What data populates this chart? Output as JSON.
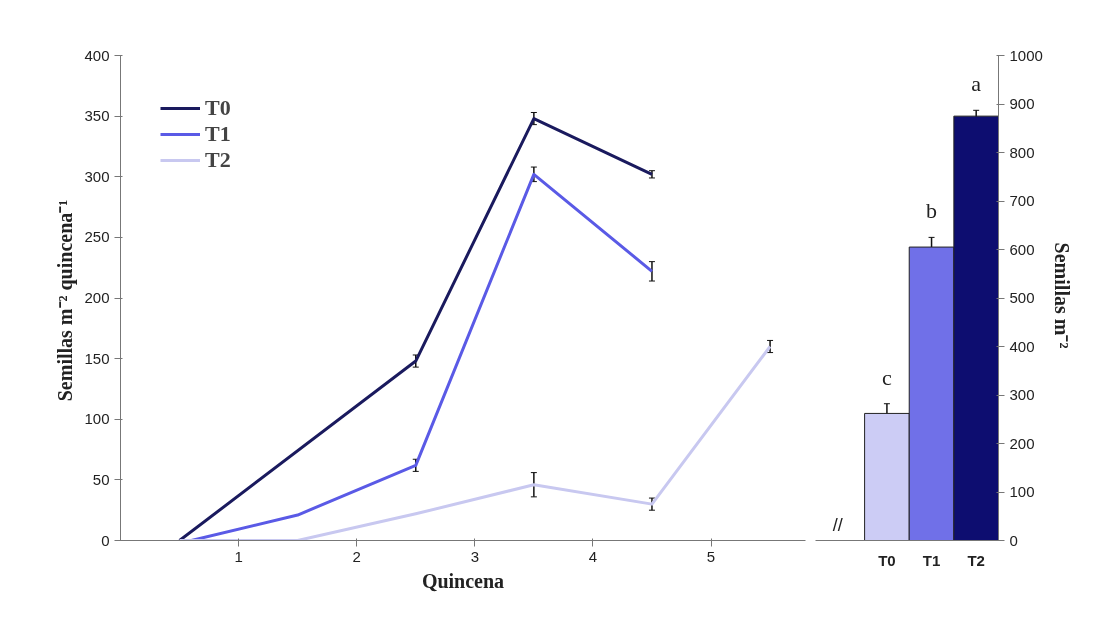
{
  "chart_data": [
    {
      "type": "line",
      "xlabel": "Quincena",
      "ylabel": "Semillas  m⁻² quincena⁻¹",
      "xlim": [
        0,
        5.8
      ],
      "xticks": [
        1,
        2,
        3,
        4,
        5
      ],
      "ylim": [
        0,
        400
      ],
      "yticks": [
        0,
        50,
        100,
        150,
        200,
        250,
        300,
        350,
        400
      ],
      "grid": false,
      "legend": "top left",
      "marker": "none",
      "series": [
        {
          "name": "T0",
          "color": "#1a1a5e",
          "x": [
            0.5,
            2.5,
            3.5,
            4.5
          ],
          "values": [
            0,
            148,
            348,
            302
          ],
          "errors": [
            null,
            5,
            5,
            3
          ]
        },
        {
          "name": "T1",
          "color": "#5a5ae6",
          "x": [
            0.6,
            1.5,
            2.5,
            3.5,
            4.5
          ],
          "values": [
            0,
            21,
            62,
            302,
            222
          ],
          "errors": [
            null,
            null,
            5,
            6,
            8
          ]
        },
        {
          "name": "T2",
          "color": "#c8c8f0",
          "x": [
            0.5,
            1.5,
            2.5,
            3.5,
            4.5,
            5.5
          ],
          "values": [
            0,
            0,
            22,
            46,
            30,
            160
          ],
          "errors": [
            null,
            null,
            null,
            10,
            5,
            5
          ]
        }
      ]
    },
    {
      "type": "bar",
      "ylabel": "Semillas  m⁻²",
      "categories": [
        "T0",
        "T1",
        "T2"
      ],
      "ylim": [
        0,
        1000
      ],
      "yticks": [
        0,
        100,
        200,
        300,
        400,
        500,
        600,
        700,
        800,
        900,
        1000
      ],
      "series": [
        {
          "values": [
            262,
            605,
            875
          ],
          "colors": [
            "#ccccf5",
            "#7070e8",
            "#0d0d70"
          ],
          "errors": [
            20,
            20,
            12
          ]
        }
      ],
      "annotations": [
        "//",
        "c",
        "b",
        "a"
      ]
    }
  ]
}
